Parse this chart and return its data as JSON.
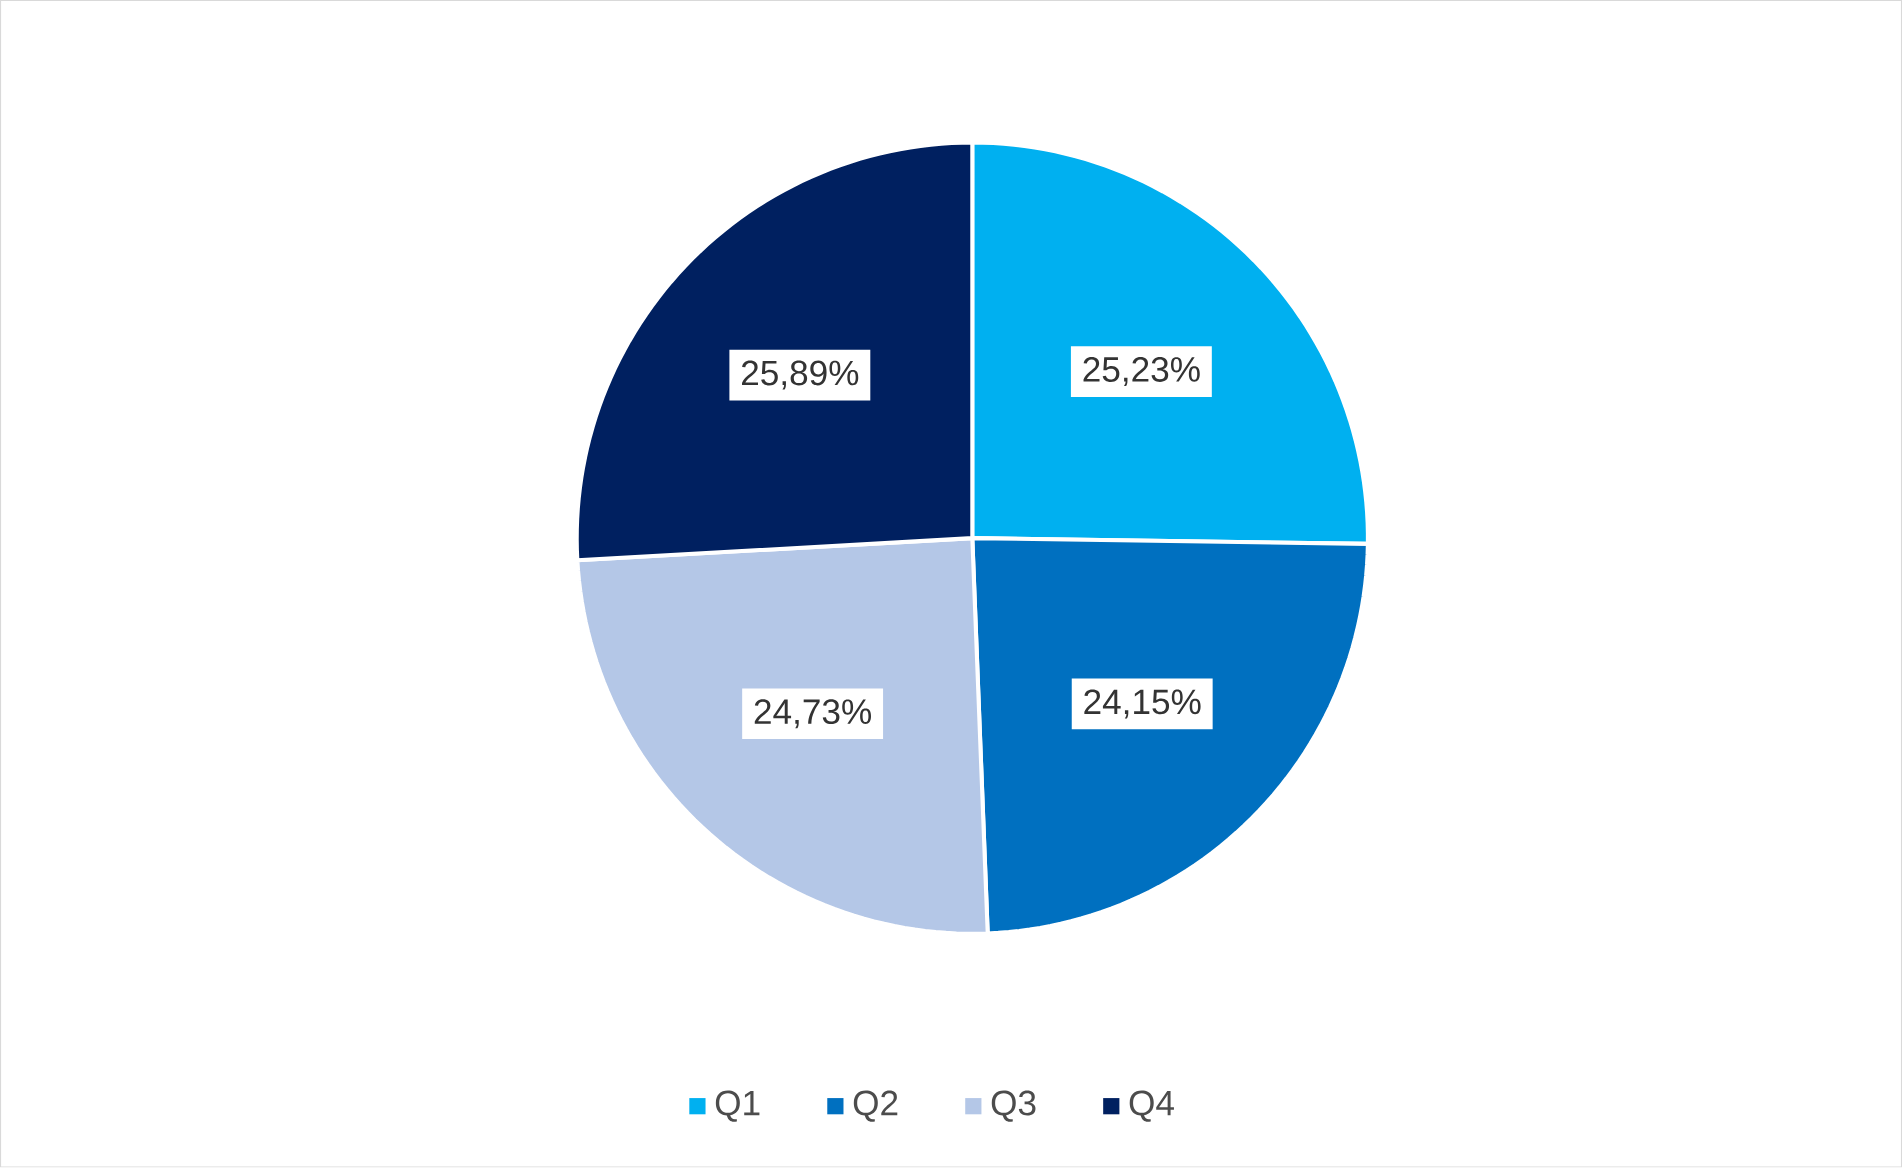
{
  "chart_data": {
    "type": "pie",
    "categories": [
      "Q1",
      "Q2",
      "Q3",
      "Q4"
    ],
    "values": [
      25.23,
      24.15,
      24.73,
      25.89
    ],
    "colors": [
      "#00b0f0",
      "#0070c0",
      "#b4c7e7",
      "#002060"
    ],
    "value_labels": [
      "25,23%",
      "24,15%",
      "24,73%",
      "25,89%"
    ],
    "legend": "bottom"
  }
}
